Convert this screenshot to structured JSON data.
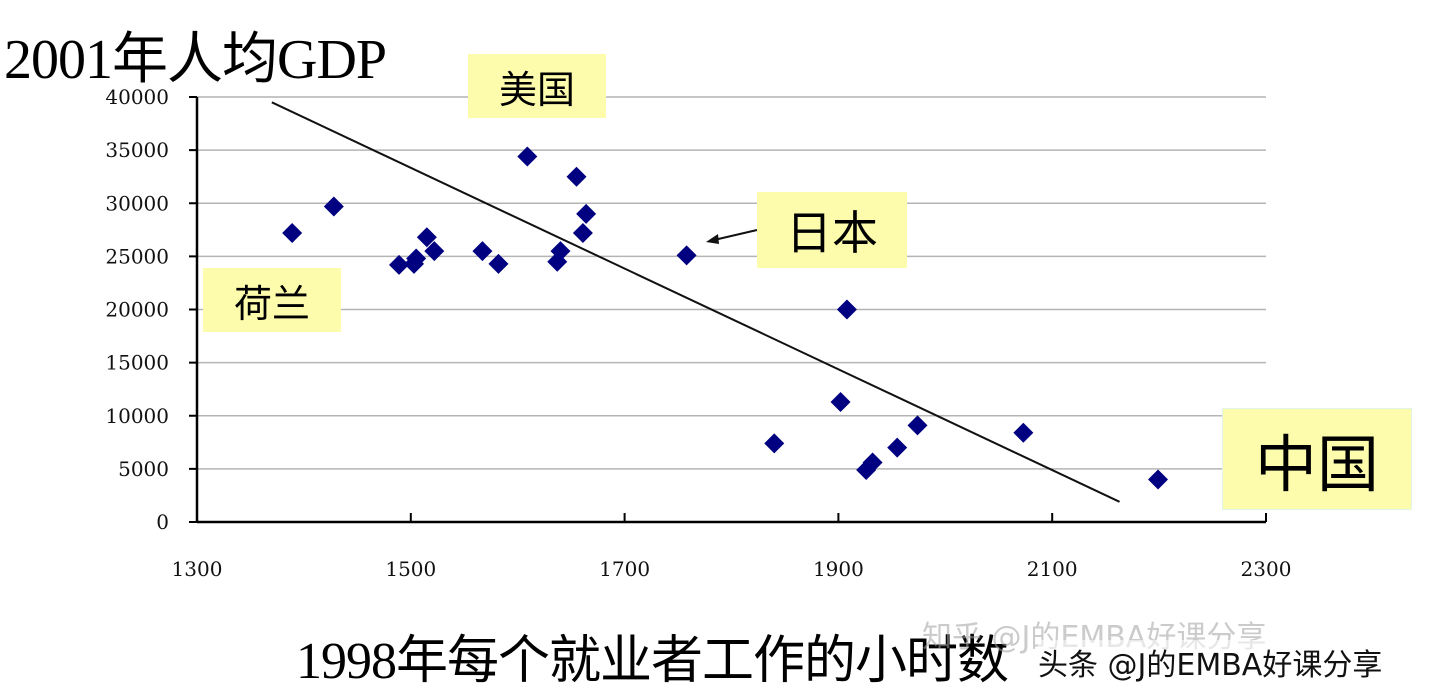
{
  "chart_data": {
    "type": "scatter",
    "title": "2001年人均GDP",
    "xlabel": "1998年每个就业者工作的小时数",
    "ylabel": "2001年人均GDP",
    "xlim": [
      1300,
      2300
    ],
    "ylim": [
      0,
      40000
    ],
    "x_ticks": [
      1300,
      1500,
      1700,
      1900,
      2100,
      2300
    ],
    "y_ticks": [
      0,
      5000,
      10000,
      15000,
      20000,
      25000,
      30000,
      35000,
      40000
    ],
    "grid": "horizontal",
    "marker": "diamond",
    "marker_color": "#000080",
    "points": [
      {
        "x": 1389,
        "y": 27200
      },
      {
        "x": 1428,
        "y": 29700
      },
      {
        "x": 1489,
        "y": 24200
      },
      {
        "x": 1503,
        "y": 24300
      },
      {
        "x": 1505,
        "y": 24800
      },
      {
        "x": 1515,
        "y": 26800
      },
      {
        "x": 1522,
        "y": 25500
      },
      {
        "x": 1567,
        "y": 25500
      },
      {
        "x": 1582,
        "y": 24300
      },
      {
        "x": 1609,
        "y": 34400
      },
      {
        "x": 1637,
        "y": 24500
      },
      {
        "x": 1640,
        "y": 25500
      },
      {
        "x": 1655,
        "y": 32500
      },
      {
        "x": 1661,
        "y": 27200
      },
      {
        "x": 1664,
        "y": 29000
      },
      {
        "x": 1758,
        "y": 25100
      },
      {
        "x": 1840,
        "y": 7400
      },
      {
        "x": 1902,
        "y": 11300
      },
      {
        "x": 1908,
        "y": 20000
      },
      {
        "x": 1926,
        "y": 4900
      },
      {
        "x": 1932,
        "y": 5600
      },
      {
        "x": 1955,
        "y": 7000
      },
      {
        "x": 1974,
        "y": 9100
      },
      {
        "x": 2073,
        "y": 8400
      },
      {
        "x": 2199,
        "y": 4000
      }
    ],
    "trendline": {
      "x1": 1370,
      "y1": 39500,
      "x2": 2163,
      "y2": 1900
    },
    "annotations": [
      {
        "label": "美国",
        "target": {
          "x": 1609,
          "y": 34400
        }
      },
      {
        "label": "日本",
        "target": {
          "x": 1758,
          "y": 25100
        },
        "arrow": true
      },
      {
        "label": "荷兰",
        "target": {
          "x": 1389,
          "y": 27200
        }
      },
      {
        "label": "中国",
        "target": {
          "x": 2199,
          "y": 4000
        }
      }
    ]
  },
  "labels": {
    "title": "2001年人均GDP",
    "xlabel": "1998年每个就业者工作的小时数",
    "callout_us": "美国",
    "callout_japan": "日本",
    "callout_netherlands": "荷兰",
    "callout_china": "中国"
  },
  "watermark": {
    "text": "头条 @J的EMBA好课分享",
    "text_faint": "知乎 @J的EMBA好课分享"
  },
  "colors": {
    "marker": "#000080",
    "callout_bg": "#fdfcac",
    "grid": "#b4b4b4",
    "axis": "#000000"
  }
}
